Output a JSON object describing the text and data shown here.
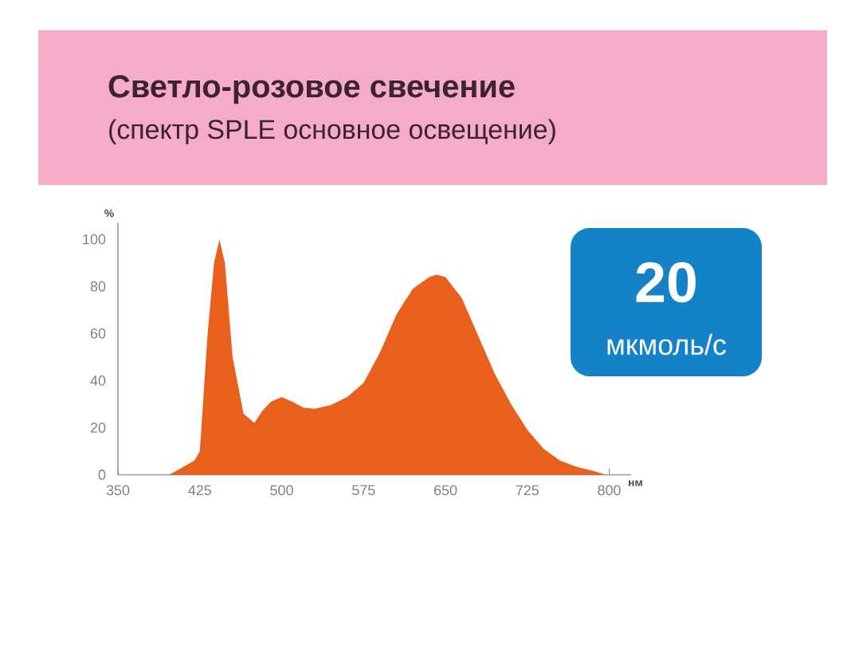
{
  "chart_data": {
    "type": "area",
    "title": "Светло-розовое свечение",
    "subtitle": "(спектр SPLE основное освещение)",
    "xlabel": "нм",
    "ylabel": "%",
    "annotations": [
      "20",
      "мкмоль/с"
    ],
    "x": [
      397,
      420,
      425,
      432,
      438,
      443,
      448,
      455,
      465,
      475,
      482,
      490,
      500,
      510,
      520,
      530,
      545,
      560,
      575,
      590,
      605,
      620,
      635,
      642,
      650,
      665,
      680,
      695,
      710,
      725,
      740,
      755,
      770,
      785,
      797
    ],
    "series": [
      {
        "color": "#e8601c",
        "values": [
          0,
          6,
          10,
          59,
          90,
          100,
          90,
          50,
          26,
          22,
          27,
          31,
          33,
          31,
          28.5,
          28,
          29.6,
          33,
          39,
          52,
          68,
          79,
          84,
          85,
          84,
          75,
          59,
          43,
          30,
          19,
          11,
          6,
          3.4,
          1.7,
          0
        ]
      }
    ],
    "xlim": [
      350,
      820
    ],
    "xticks": [
      350,
      425,
      500,
      575,
      650,
      725,
      800
    ],
    "ylim": [
      0,
      107
    ],
    "yticks": [
      0,
      20,
      40,
      60,
      80,
      100
    ],
    "grid": false
  }
}
